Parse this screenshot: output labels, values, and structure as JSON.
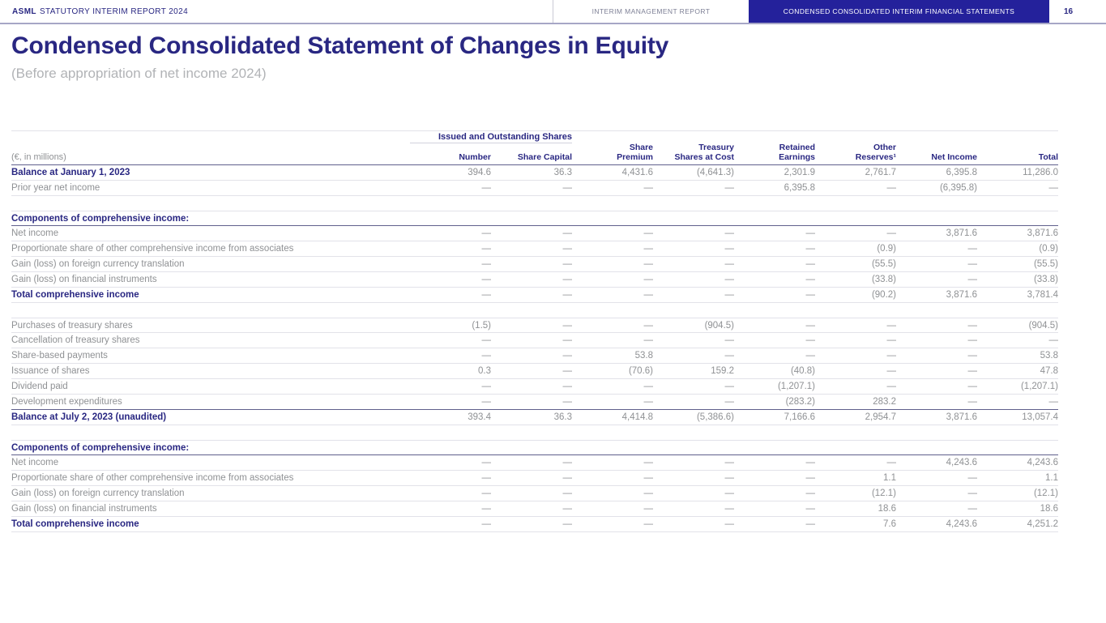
{
  "header": {
    "brand_bold": "ASML",
    "brand_rest": "STATUTORY INTERIM REPORT 2024",
    "tabs": [
      {
        "label": "INTERIM MANAGEMENT REPORT",
        "active": false
      },
      {
        "label": "CONDENSED CONSOLIDATED INTERIM FINANCIAL STATEMENTS",
        "active": true
      }
    ],
    "page_number": "16",
    "active_tab_color": "#24219b",
    "navy_text_color": "#292782"
  },
  "title": "Condensed Consolidated Statement of Changes in Equity",
  "subtitle": "(Before appropriation of net income 2024)",
  "table": {
    "group_header": "Issued and Outstanding Shares",
    "row_label_header": "(€, in millions)",
    "columns": [
      [
        "Number"
      ],
      [
        "Share Capital"
      ],
      [
        "Share",
        "Premium"
      ],
      [
        "Treasury",
        "Shares at Cost"
      ],
      [
        "Retained",
        "Earnings"
      ],
      [
        "Other",
        "Reserves¹"
      ],
      [
        "Net Income"
      ],
      [
        "Total"
      ]
    ],
    "rows": [
      {
        "label": "Balance at January 1, 2023",
        "style": "bold",
        "values": [
          "394.6",
          "36.3",
          "4,431.6",
          "(4,641.3)",
          "2,301.9",
          "2,761.7",
          "6,395.8",
          "11,286.0"
        ]
      },
      {
        "label": "Prior year net income",
        "style": "normal",
        "values": [
          "—",
          "—",
          "—",
          "—",
          "6,395.8",
          "—",
          "(6,395.8)",
          "—"
        ]
      },
      {
        "style": "spacer"
      },
      {
        "label": "Components of comprehensive income:",
        "style": "section",
        "values": [
          "",
          "",
          "",
          "",
          "",
          "",
          "",
          ""
        ]
      },
      {
        "label": "Net income",
        "style": "normal",
        "values": [
          "—",
          "—",
          "—",
          "—",
          "—",
          "—",
          "3,871.6",
          "3,871.6"
        ]
      },
      {
        "label": "Proportionate share of other comprehensive income from associates",
        "style": "normal",
        "values": [
          "—",
          "—",
          "—",
          "—",
          "—",
          "(0.9)",
          "—",
          "(0.9)"
        ]
      },
      {
        "label": "Gain (loss) on foreign currency translation",
        "style": "normal",
        "values": [
          "—",
          "—",
          "—",
          "—",
          "—",
          "(55.5)",
          "—",
          "(55.5)"
        ]
      },
      {
        "label": "Gain (loss) on financial instruments",
        "style": "normal",
        "values": [
          "—",
          "—",
          "—",
          "—",
          "—",
          "(33.8)",
          "—",
          "(33.8)"
        ]
      },
      {
        "label": "Total comprehensive income",
        "style": "bold",
        "values": [
          "—",
          "—",
          "—",
          "—",
          "—",
          "(90.2)",
          "3,871.6",
          "3,781.4"
        ]
      },
      {
        "style": "spacer"
      },
      {
        "label": "Purchases of treasury shares",
        "style": "normal",
        "values": [
          "(1.5)",
          "—",
          "—",
          "(904.5)",
          "—",
          "—",
          "—",
          "(904.5)"
        ]
      },
      {
        "label": "Cancellation of treasury shares",
        "style": "normal",
        "values": [
          "—",
          "—",
          "—",
          "—",
          "—",
          "—",
          "—",
          "—"
        ]
      },
      {
        "label": "Share-based payments",
        "style": "normal",
        "values": [
          "—",
          "—",
          "53.8",
          "—",
          "—",
          "—",
          "—",
          "53.8"
        ]
      },
      {
        "label": "Issuance of shares",
        "style": "normal",
        "values": [
          "0.3",
          "—",
          "(70.6)",
          "159.2",
          "(40.8)",
          "—",
          "—",
          "47.8"
        ]
      },
      {
        "label": "Dividend paid",
        "style": "normal",
        "values": [
          "—",
          "—",
          "—",
          "—",
          "(1,207.1)",
          "—",
          "—",
          "(1,207.1)"
        ]
      },
      {
        "label": "Development expenditures",
        "style": "normal",
        "rule": "dark",
        "values": [
          "—",
          "—",
          "—",
          "—",
          "(283.2)",
          "283.2",
          "—",
          "—"
        ]
      },
      {
        "label": "Balance at July 2, 2023 (unaudited)",
        "style": "bold",
        "values": [
          "393.4",
          "36.3",
          "4,414.8",
          "(5,386.6)",
          "7,166.6",
          "2,954.7",
          "3,871.6",
          "13,057.4"
        ]
      },
      {
        "style": "spacer"
      },
      {
        "label": "Components of comprehensive income:",
        "style": "section",
        "values": [
          "",
          "",
          "",
          "",
          "",
          "",
          "",
          ""
        ]
      },
      {
        "label": "Net income",
        "style": "normal",
        "values": [
          "—",
          "—",
          "—",
          "—",
          "—",
          "—",
          "4,243.6",
          "4,243.6"
        ]
      },
      {
        "label": "Proportionate share of other comprehensive income from associates",
        "style": "normal",
        "values": [
          "—",
          "—",
          "—",
          "—",
          "—",
          "1.1",
          "—",
          "1.1"
        ]
      },
      {
        "label": "Gain (loss) on foreign currency translation",
        "style": "normal",
        "values": [
          "—",
          "—",
          "—",
          "—",
          "—",
          "(12.1)",
          "—",
          "(12.1)"
        ]
      },
      {
        "label": "Gain (loss) on financial instruments",
        "style": "normal",
        "values": [
          "—",
          "—",
          "—",
          "—",
          "—",
          "18.6",
          "—",
          "18.6"
        ]
      },
      {
        "label": "Total comprehensive income",
        "style": "bold",
        "values": [
          "—",
          "—",
          "—",
          "—",
          "—",
          "7.6",
          "4,243.6",
          "4,251.2"
        ]
      }
    ]
  }
}
